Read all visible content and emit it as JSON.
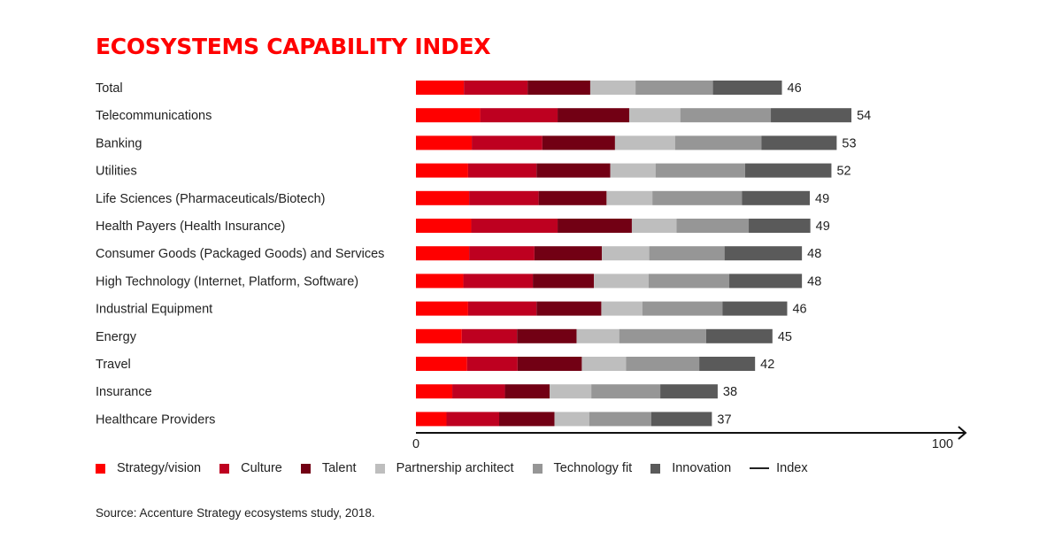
{
  "chart_data": {
    "type": "bar",
    "orientation": "horizontal",
    "stacked": true,
    "title": "ECOSYSTEMS CAPABILITY INDEX",
    "categories": [
      "Total",
      "Telecommunications",
      "Banking",
      "Utilities",
      "Life Sciences (Pharmaceuticals/Biotech)",
      "Health Payers (Health Insurance)",
      "Consumer Goods (Packaged Goods) and Services",
      "High Technology (Internet, Platform, Software)",
      "Industrial Equipment",
      "Energy",
      "Travel",
      "Insurance",
      "Healthcare Providers"
    ],
    "series": [
      {
        "name": "Strategy/vision",
        "color": "#ff0000",
        "values": [
          9.1,
          12.2,
          10.6,
          9.9,
          10.1,
          10.5,
          10.1,
          9.0,
          9.9,
          8.7,
          9.7,
          6.9,
          5.8
        ]
      },
      {
        "name": "Culture",
        "color": "#be0020",
        "values": [
          12.1,
          14.7,
          13.4,
          13.0,
          13.2,
          16.4,
          12.4,
          13.2,
          13.0,
          10.5,
          9.6,
          10.0,
          10.0
        ]
      },
      {
        "name": "Talent",
        "color": "#720014",
        "values": [
          11.9,
          13.6,
          13.8,
          14.0,
          12.9,
          14.1,
          12.8,
          11.6,
          12.3,
          11.3,
          12.2,
          8.5,
          10.5
        ]
      },
      {
        "name": "Partnership architect",
        "color": "#bebebe",
        "values": [
          8.6,
          9.7,
          11.4,
          8.6,
          8.7,
          8.5,
          9.0,
          10.4,
          7.8,
          8.1,
          8.4,
          7.9,
          6.6
        ]
      },
      {
        "name": "Technology fit",
        "color": "#969696",
        "values": [
          14.7,
          17.2,
          16.4,
          17.0,
          17.0,
          13.7,
          14.3,
          15.3,
          15.2,
          16.5,
          13.9,
          13.1,
          11.8
        ]
      },
      {
        "name": "Innovation",
        "color": "#5a5a5a",
        "values": [
          13.1,
          15.3,
          14.3,
          16.4,
          12.9,
          11.7,
          14.7,
          13.8,
          12.3,
          12.6,
          10.6,
          10.9,
          11.5
        ]
      }
    ],
    "index": {
      "name": "Index",
      "values": [
        46,
        54,
        53,
        52,
        49,
        49,
        48,
        48,
        46,
        45,
        42,
        38,
        37
      ]
    },
    "xlim": [
      0,
      100
    ],
    "xticks": [
      "0",
      "100"
    ],
    "grid": false,
    "legend_position": "bottom",
    "source": "Source: Accenture Strategy ecosystems study, 2018."
  }
}
